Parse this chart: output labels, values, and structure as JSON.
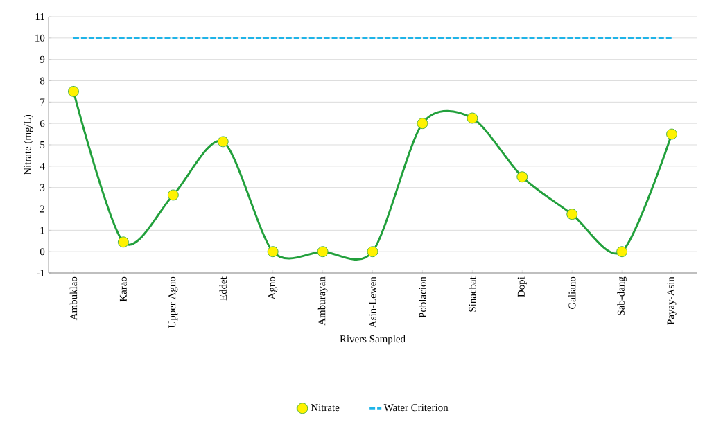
{
  "chart_data": {
    "type": "line",
    "xlabel": "Rivers Sampled",
    "ylabel": "Nitrate (mg/L)",
    "categories": [
      "Ambuklao",
      "Karao",
      "Upper Agno",
      "Eddet",
      "Agno",
      "Amburayan",
      "Asin-Lewen",
      "Poblacion",
      "Sinacbat",
      "Dopi",
      "Galiano",
      "Sab-dang",
      "Payay-Asin"
    ],
    "series": [
      {
        "name": "Nitrate",
        "color": "#22a03c",
        "marker": "circle",
        "line_style": "solid",
        "values": [
          7.5,
          0.45,
          2.65,
          5.15,
          0,
          0,
          0,
          6.0,
          6.25,
          3.5,
          1.75,
          0,
          5.5
        ]
      },
      {
        "name": "Water Criterion",
        "color": "#1fb4e8",
        "marker": "none",
        "line_style": "dashed",
        "values": [
          10,
          10,
          10,
          10,
          10,
          10,
          10,
          10,
          10,
          10,
          10,
          10,
          10
        ]
      }
    ],
    "ylim": [
      -1,
      11
    ],
    "yticks": [
      -1,
      0,
      1,
      2,
      3,
      4,
      5,
      6,
      7,
      8,
      9,
      10,
      11
    ],
    "grid": "y",
    "legend": "bottom"
  }
}
